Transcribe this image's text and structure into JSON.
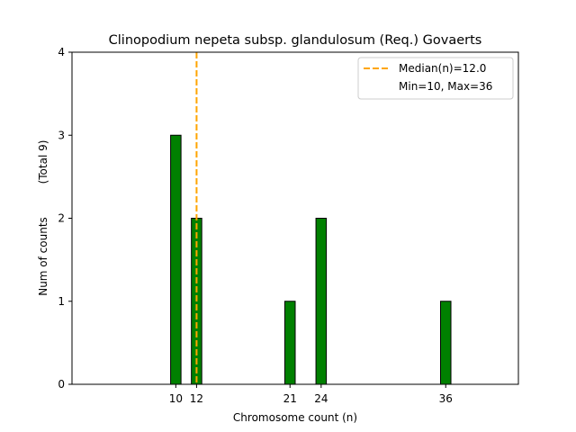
{
  "chart_data": {
    "type": "bar",
    "title": "Clinopodium nepeta subsp. glandulosum (Req.) Govaerts",
    "xlabel": "Chromosome count (n)",
    "ylabel_main": "Num of counts",
    "ylabel_total": "(Total 9)",
    "xlim": [
      0,
      43
    ],
    "ylim": [
      0,
      4
    ],
    "x_ticks": [
      10,
      12,
      21,
      24,
      36
    ],
    "y_ticks": [
      0,
      1,
      2,
      3,
      4
    ],
    "bars": [
      {
        "x": 10,
        "count": 3
      },
      {
        "x": 12,
        "count": 2
      },
      {
        "x": 21,
        "count": 1
      },
      {
        "x": 24,
        "count": 2
      },
      {
        "x": 36,
        "count": 1
      }
    ],
    "baseline_end": 39,
    "median": 12.0,
    "legend": {
      "placement": "top-right",
      "median_label": "Median(n)=12.0",
      "range_label": "Min=10, Max=36"
    },
    "colors": {
      "bar": "#008000",
      "bar_edge": "#000000",
      "median_line": "#FFA500"
    },
    "grid": false
  }
}
